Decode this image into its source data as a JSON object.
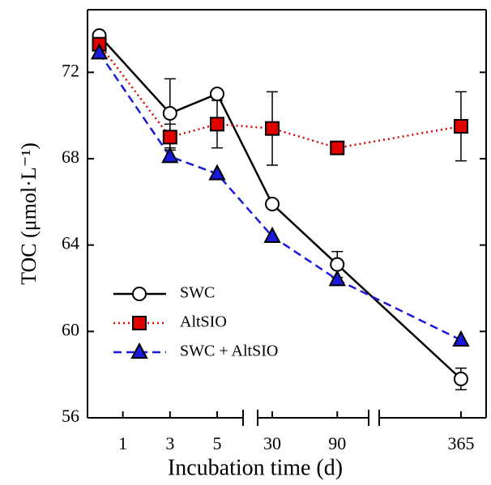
{
  "chart_data": {
    "type": "line",
    "x_label": "Incubation time (d)",
    "y_label": "TOC (μmol·L⁻¹)",
    "x": [
      0,
      3,
      5,
      30,
      90,
      365
    ],
    "x_segments": [
      {
        "xlim": [
          -0.5,
          6.1
        ],
        "xticks": [
          1,
          3,
          5
        ]
      },
      {
        "xlim": [
          16.5,
          119
        ],
        "xticks": [
          30,
          90
        ]
      },
      {
        "xlim": [
          300,
          385
        ],
        "xticks": [
          365
        ]
      }
    ],
    "ylim": [
      56,
      74.9
    ],
    "yticks": [
      56,
      60,
      64,
      68,
      72
    ],
    "legend": "lower left",
    "series": [
      {
        "name": "SWC",
        "color": "#000000",
        "marker": "circle",
        "dash": "solid",
        "values": [
          73.7,
          70.1,
          71.0,
          65.9,
          63.1,
          57.8
        ],
        "errors": [
          null,
          1.6,
          null,
          null,
          0.6,
          0.5
        ]
      },
      {
        "name": "AltSIO",
        "color": "#e00000",
        "marker": "square",
        "dash": "dotted",
        "values": [
          73.3,
          69.0,
          69.6,
          69.4,
          68.5,
          69.5
        ],
        "errors": [
          null,
          0.6,
          1.1,
          1.7,
          null,
          1.6
        ]
      },
      {
        "name": "SWC + AltSIO",
        "color": "#1a1adc",
        "marker": "triangle",
        "dash": "dashed",
        "values": [
          72.9,
          68.1,
          67.3,
          64.4,
          62.4,
          59.6
        ],
        "errors": [
          null,
          null,
          null,
          null,
          null,
          null
        ]
      }
    ]
  }
}
